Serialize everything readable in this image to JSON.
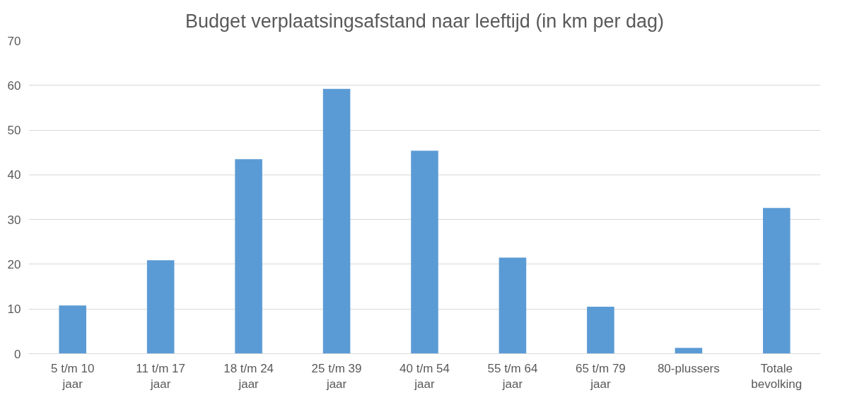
{
  "chart_data": {
    "type": "bar",
    "title": "Budget verplaatsingsafstand naar leeftijd (in km per dag)",
    "categories": [
      "5 t/m 10\njaar",
      "11 t/m 17\njaar",
      "18 t/m 24\njaar",
      "25 t/m 39\njaar",
      "40 t/m 54\njaar",
      "55 t/m 64\njaar",
      "65 t/m 79\njaar",
      "80-plussers",
      "Totale\nbevolking"
    ],
    "values": [
      10.8,
      20.9,
      43.5,
      59.2,
      45.4,
      21.5,
      10.5,
      1.3,
      32.6
    ],
    "color": "#5b9bd5",
    "ylim": [
      0,
      70
    ],
    "yticks": [
      0,
      10,
      20,
      30,
      40,
      50,
      60,
      70
    ],
    "grid": "y"
  }
}
